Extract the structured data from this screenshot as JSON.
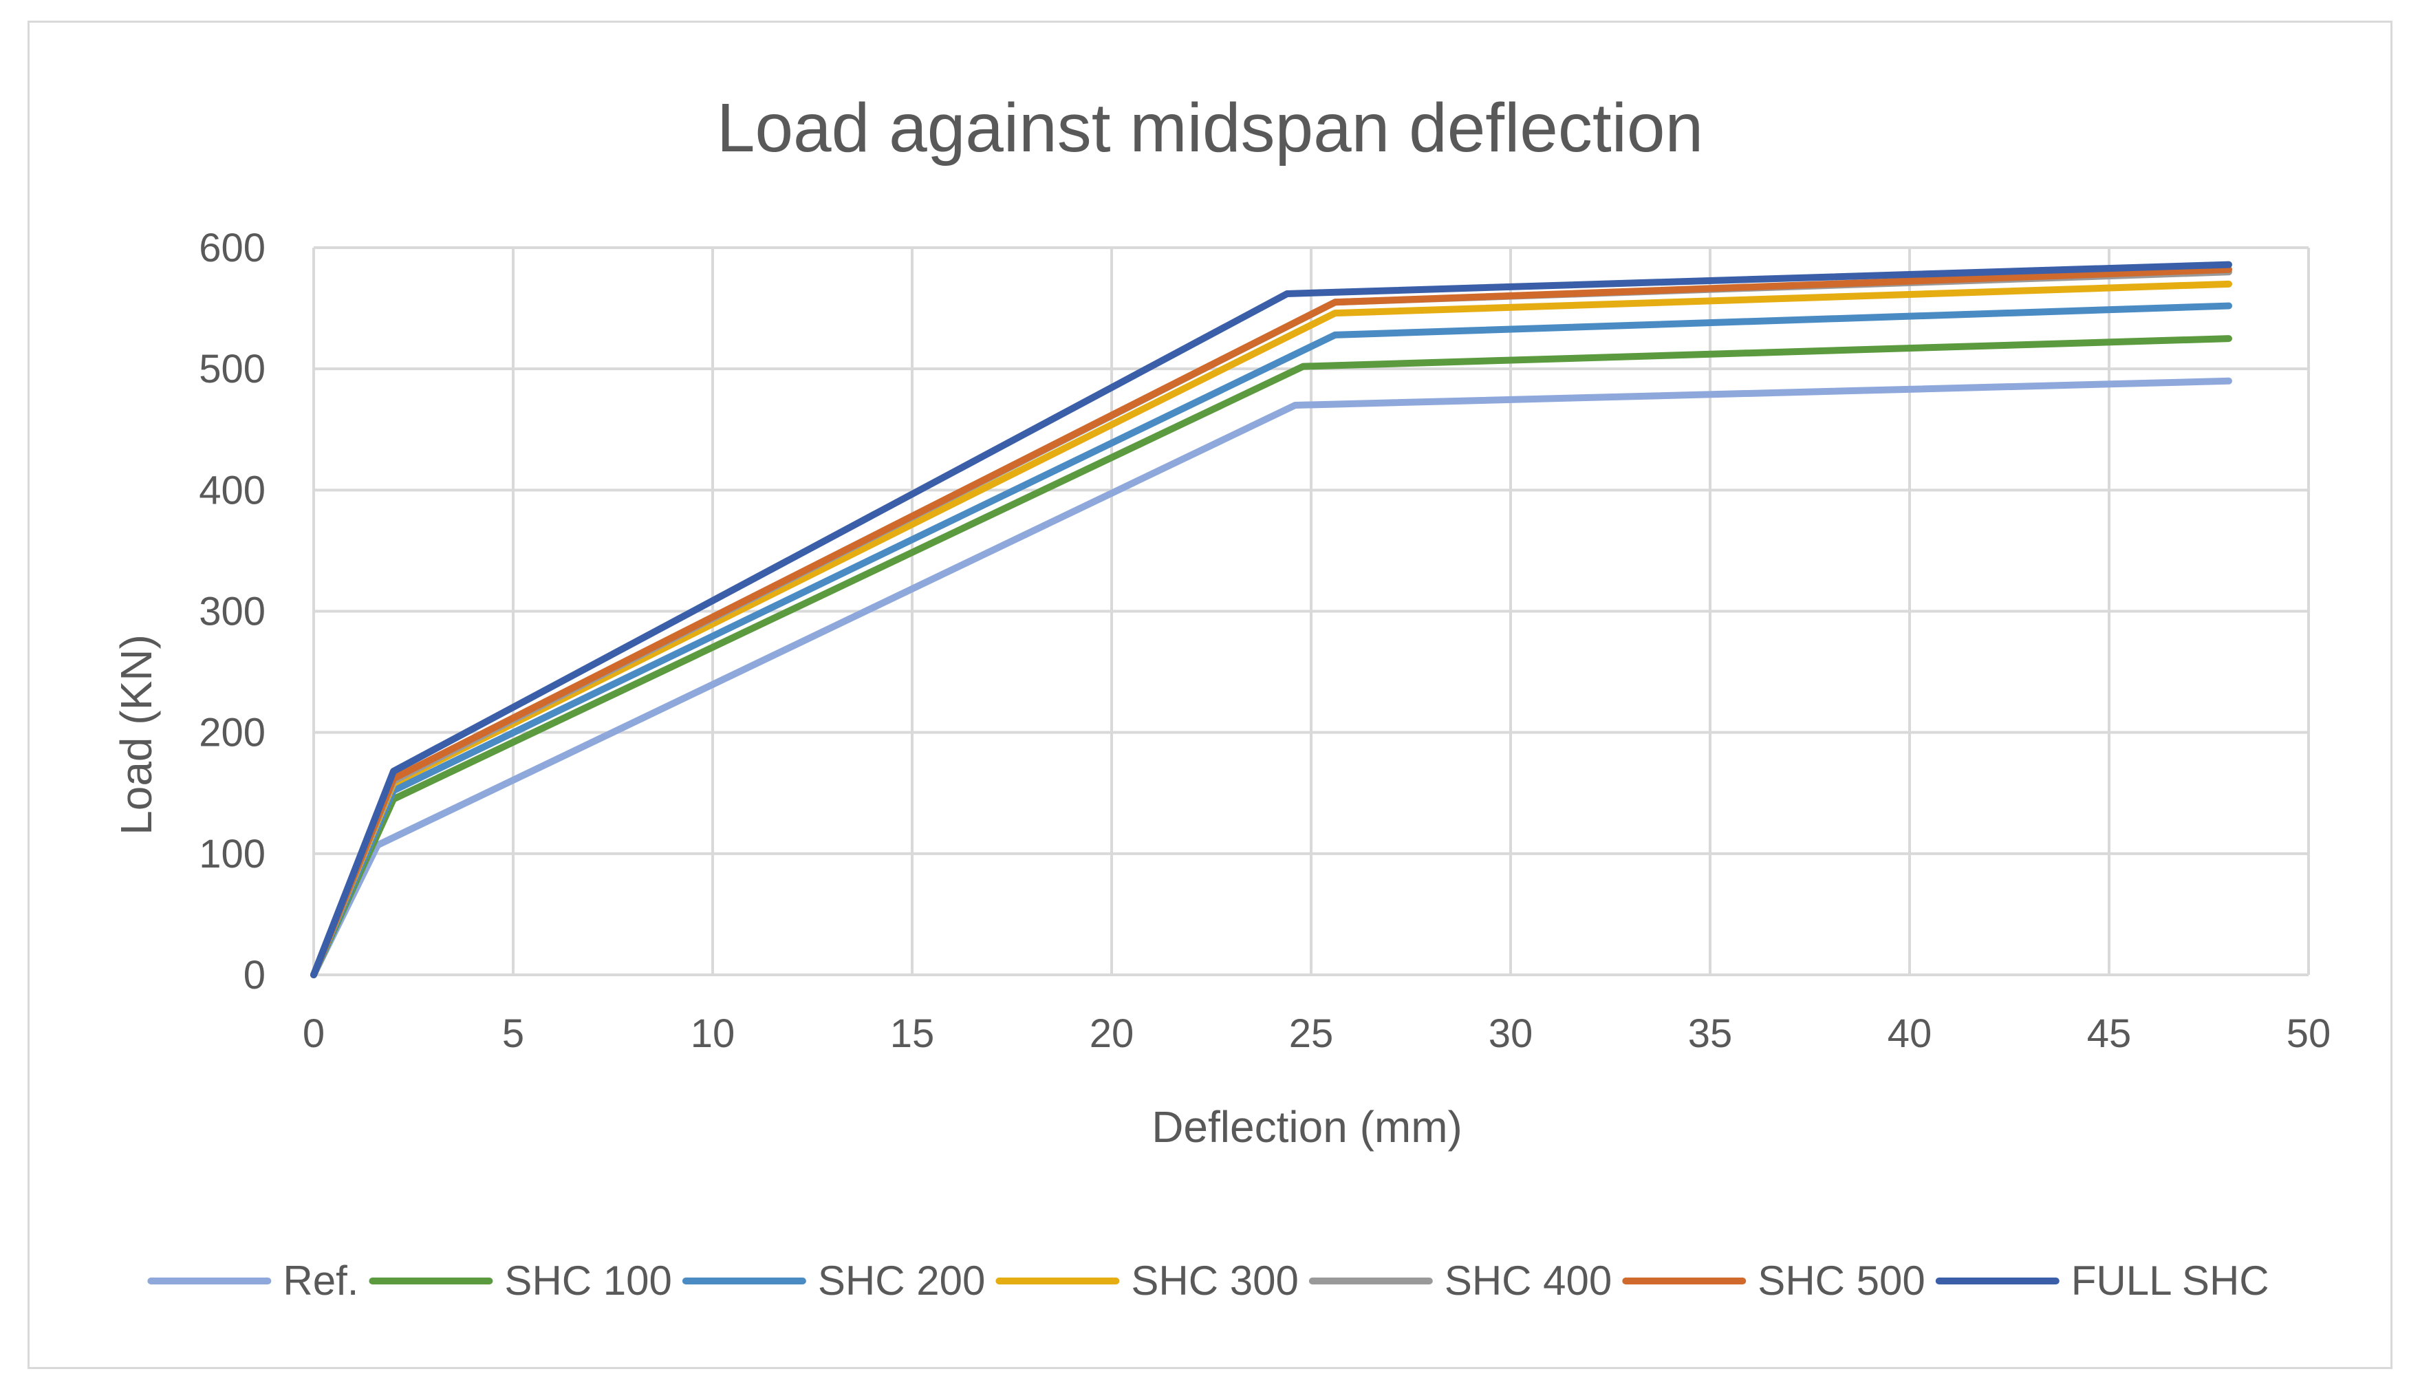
{
  "chart_data": {
    "type": "line",
    "title": "Load against midspan deflection",
    "xlabel": "Deflection (mm)",
    "ylabel": "Load (KN)",
    "xlim": [
      0,
      50
    ],
    "ylim": [
      0,
      600
    ],
    "xticks": [
      "0",
      "5",
      "10",
      "15",
      "20",
      "25",
      "30",
      "35",
      "40",
      "45",
      "50"
    ],
    "yticks": [
      "0",
      "100",
      "200",
      "300",
      "400",
      "500",
      "600"
    ],
    "grid": true,
    "legend": "bottom",
    "series": [
      {
        "name": "Ref.",
        "color": "#8fa8dc",
        "x": [
          0,
          1.6,
          24.6,
          48
        ],
        "y": [
          0,
          107,
          470,
          490
        ]
      },
      {
        "name": "SHC 100",
        "color": "#5b9a3e",
        "x": [
          0,
          2,
          24.8,
          48
        ],
        "y": [
          0,
          145,
          502,
          525
        ]
      },
      {
        "name": "SHC 200",
        "color": "#4a8bc4",
        "x": [
          0,
          2,
          25.6,
          48
        ],
        "y": [
          0,
          152,
          528,
          552
        ]
      },
      {
        "name": "SHC 300",
        "color": "#e6ad12",
        "x": [
          0,
          2,
          25.6,
          48
        ],
        "y": [
          0,
          158,
          546,
          570
        ]
      },
      {
        "name": "SHC 400",
        "color": "#999999",
        "x": [
          0,
          2,
          25.6,
          48
        ],
        "y": [
          0,
          160,
          555,
          580
        ]
      },
      {
        "name": "SHC 500",
        "color": "#cf6a2c",
        "x": [
          0,
          2,
          25.6,
          48
        ],
        "y": [
          0,
          162,
          555,
          582
        ]
      },
      {
        "name": "FULL SHC",
        "color": "#3a5fa8",
        "x": [
          0,
          2,
          24.4,
          48
        ],
        "y": [
          0,
          168,
          562,
          586
        ]
      }
    ]
  }
}
